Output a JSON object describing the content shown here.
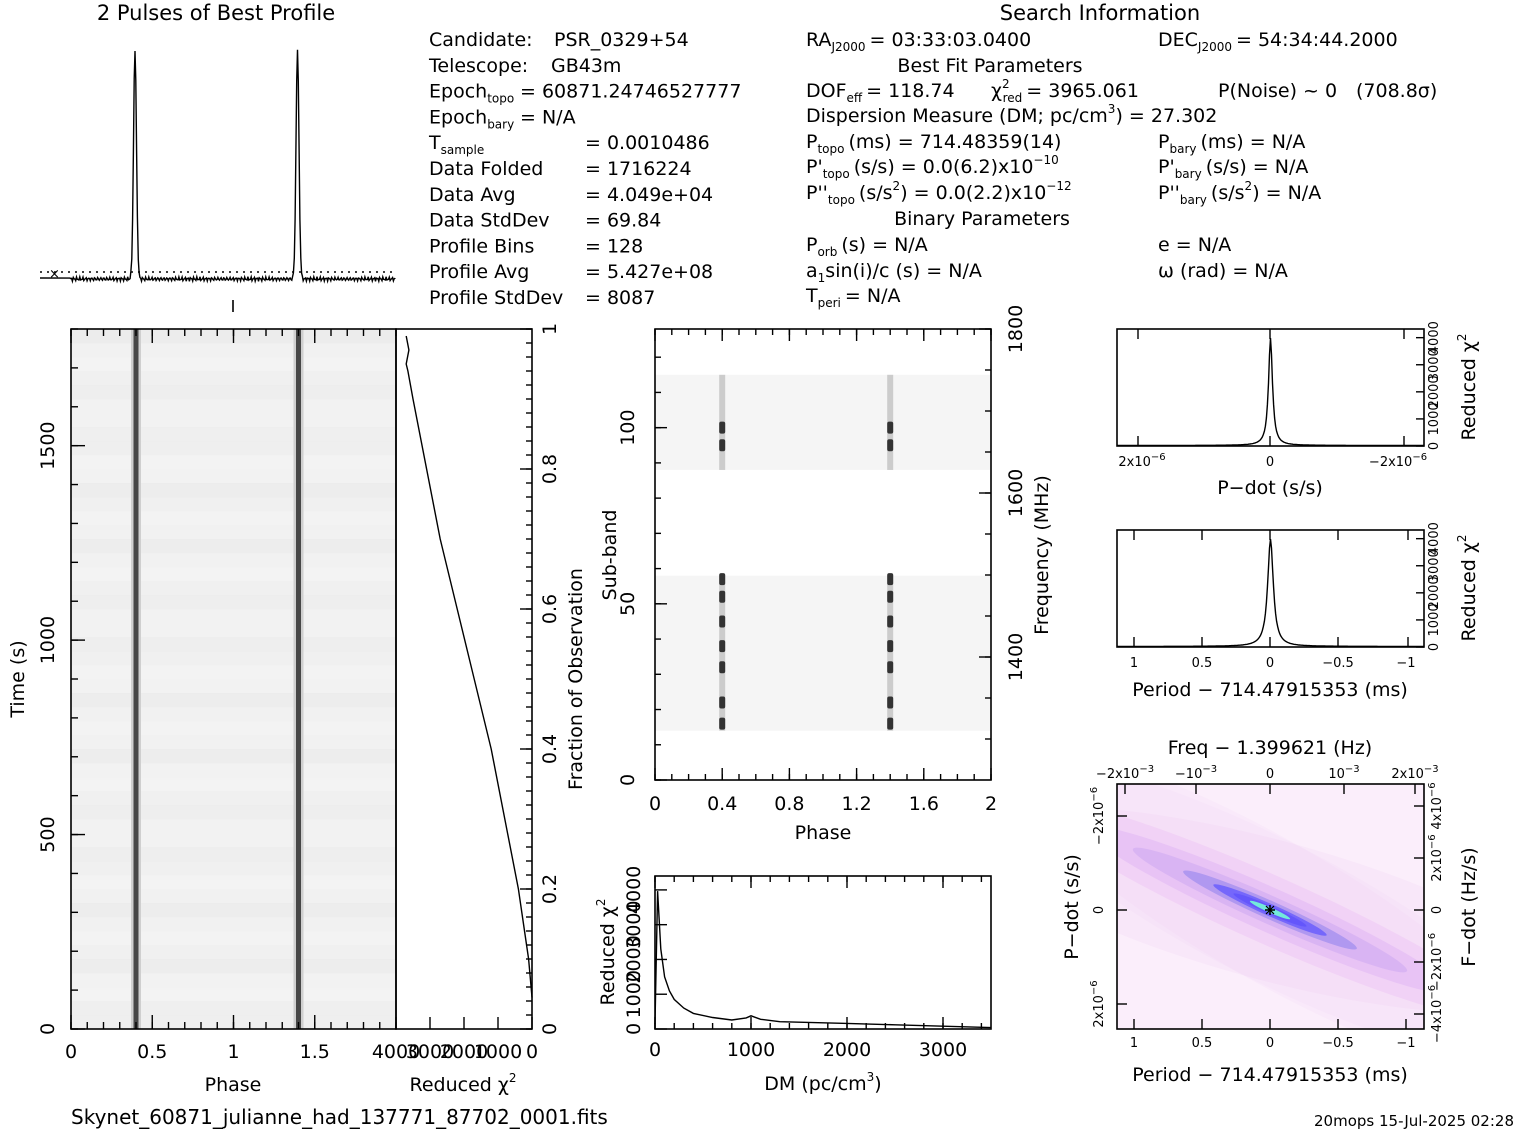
{
  "figure": {
    "profile_title": "2 Pulses of Best Profile",
    "search_title": "Search Information",
    "filename": "Skynet_60871_julianne_had_137771_87702_0001.fits",
    "footer": "20mops  15-Jul-2025 02:28"
  },
  "info": {
    "col1": [
      {
        "label": "Candidate:",
        "value": "PSR_0329+54"
      },
      {
        "label": "Telescope:",
        "value": "GB43m"
      },
      {
        "label": "Epoch",
        "sub": "topo",
        "value": "= 60871.24746527777"
      },
      {
        "label": "Epoch",
        "sub": "bary",
        "value": "= N/A"
      },
      {
        "label": "T",
        "sub": "sample",
        "value": "=   0.0010486"
      },
      {
        "label": "Data Folded",
        "value": "=   1716224"
      },
      {
        "label": "Data Avg",
        "value": "=   4.049e+04"
      },
      {
        "label": "Data StdDev",
        "value": "=   69.84"
      },
      {
        "label": "Profile Bins",
        "value": "=   128"
      },
      {
        "label": "Profile Avg",
        "value": "=   5.427e+08"
      },
      {
        "label": "Profile StdDev",
        "value": "=   8087"
      }
    ],
    "ra_label": "RA",
    "ra_sub": "J2000",
    "ra_value": "= 03:33:03.0400",
    "dec_label": "DEC",
    "dec_sub": "J2000",
    "dec_value": "= 54:34:44.2000",
    "best_fit_title": "Best Fit Parameters",
    "dof_label": "DOF",
    "dof_sub": "eff",
    "dof_value": "= 118.74",
    "chi_label": "χ",
    "chi_sup": "2",
    "chi_sub": "red",
    "chi_value": "= 3965.061",
    "pnoise": "P(Noise) ~ 0",
    "sigma": "(708.8σ)",
    "dm_line": "Dispersion Measure (DM; pc/cm",
    "dm_sup": "3",
    "dm_value": ") = 27.302",
    "ptopo_label": "P",
    "ptopo_sub": "topo",
    "ptopo_value": "(ms) =  714.48359(14)",
    "pdtopo_label": "P'",
    "pdtopo_sub": "topo",
    "pdtopo_value": "(s/s) = 0.0(6.2)x10",
    "pdtopo_exp": "−10",
    "pddtopo_label": "P''",
    "pddtopo_sub": "topo",
    "pddtopo_value": "(s/s",
    "pddtopo_sup2": "2",
    "pddtopo_value2": ") = 0.0(2.2)x10",
    "pddtopo_exp": "−12",
    "pbary_label": "P",
    "pbary_sub": "bary",
    "pbary_value": "(ms) = N/A",
    "pdbary_label": "P'",
    "pdbary_sub": "bary",
    "pdbary_value": "(s/s) = N/A",
    "pddbary_label": "P''",
    "pddbary_sub": "bary",
    "pddbary_value": "(s/s",
    "pddbary_sup2": "2",
    "pddbary_value2": ") = N/A",
    "binary_title": "Binary Parameters",
    "porb_label": "P",
    "porb_sub": "orb",
    "porb_value": "(s) = N/A",
    "asini_label": "a",
    "asini_sub": "1",
    "asini_value": "sin(i)/c (s) = N/A",
    "tperi_label": "T",
    "tperi_sub": "peri",
    "tperi_value": "= N/A",
    "e_value": "e = N/A",
    "omega_value": "ω (rad) = N/A"
  },
  "chart_data": [
    {
      "id": "profile",
      "type": "line",
      "title": "2 Pulses of Best Profile",
      "x": "phase 0–2 (two rotations)",
      "peaks_at_phase": [
        0.4,
        1.4
      ],
      "baseline_dotted": true
    },
    {
      "id": "time_phase",
      "type": "heatmap",
      "xlabel": "Phase",
      "ylabel": "Time (s)",
      "xticks": [
        "0",
        "0.5",
        "1",
        "1.5"
      ],
      "yticks": [
        "0",
        "500",
        "1000",
        "1500"
      ],
      "xlim": [
        0,
        2
      ],
      "ylim": [
        0,
        1800
      ],
      "pulse_phases": [
        0.4,
        1.4
      ]
    },
    {
      "id": "chi_vs_time",
      "type": "line",
      "xlabel": "Reduced χ",
      "xlabel_sup": "2",
      "ylabel": "Fraction of Observation",
      "xticks": [
        "4000",
        "3000",
        "2000",
        "1000",
        "0"
      ],
      "yticks": [
        "0",
        "0.2",
        "0.4",
        "0.6",
        "0.8",
        "1"
      ],
      "points": [
        [
          0,
          0.045
        ],
        [
          100,
          0.1
        ],
        [
          400,
          0.2
        ],
        [
          800,
          0.3
        ],
        [
          1200,
          0.4
        ],
        [
          1700,
          0.5
        ],
        [
          2200,
          0.6
        ],
        [
          2700,
          0.7
        ],
        [
          3100,
          0.8
        ],
        [
          3500,
          0.9
        ],
        [
          3650,
          0.94
        ],
        [
          3700,
          0.95
        ],
        [
          3620,
          0.97
        ],
        [
          3700,
          0.99
        ]
      ]
    },
    {
      "id": "subband_phase",
      "type": "heatmap",
      "xlabel": "Phase",
      "ylabel": "Sub-band",
      "y2label": "Frequency (MHz)",
      "xticks": [
        "0",
        "0.4",
        "0.8",
        "1.2",
        "1.6",
        "2"
      ],
      "yticks": [
        "0",
        "50",
        "100"
      ],
      "y2ticks": [
        "1400",
        "1600",
        "1800"
      ],
      "pulse_phases": [
        0.4,
        1.4
      ],
      "active_subbands": [
        [
          14,
          58
        ],
        [
          88,
          115
        ]
      ],
      "bright_subbands": [
        16,
        22,
        32,
        38,
        45,
        52,
        57,
        95,
        100
      ]
    },
    {
      "id": "dm_chi",
      "type": "line",
      "xlabel": "DM (pc/cm",
      "xlabel_sup": "3",
      "xlabel_tail": ")",
      "ylabel": "Reduced χ",
      "ylabel_sup": "2",
      "xticks": [
        "0",
        "1000",
        "2000",
        "3000"
      ],
      "yticks": [
        "0",
        "1000",
        "2000",
        "3000",
        "4000"
      ],
      "xlim": [
        0,
        3500
      ],
      "ylim": [
        0,
        4000
      ],
      "points": [
        [
          0,
          150
        ],
        [
          27,
          3965
        ],
        [
          60,
          2300
        ],
        [
          100,
          1500
        ],
        [
          150,
          1100
        ],
        [
          200,
          850
        ],
        [
          300,
          600
        ],
        [
          400,
          450
        ],
        [
          600,
          330
        ],
        [
          800,
          260
        ],
        [
          950,
          320
        ],
        [
          1000,
          380
        ],
        [
          1100,
          280
        ],
        [
          1300,
          210
        ],
        [
          1600,
          190
        ],
        [
          2000,
          160
        ],
        [
          2500,
          120
        ],
        [
          3000,
          80
        ],
        [
          3500,
          40
        ]
      ]
    },
    {
      "id": "pdot_chi",
      "type": "line",
      "xlabel": "P−dot (s/s)",
      "ylabel": "Reduced χ",
      "ylabel_sup": "2",
      "xticks": [
        "2x10",
        "0",
        "−2x10"
      ],
      "xtick_exp": "−6",
      "yticks": [
        "0",
        "1000",
        "2000",
        "3000",
        "4000"
      ],
      "peak_value": 3965
    },
    {
      "id": "period_chi",
      "type": "line",
      "xlabel": "Period − 714.47915353 (ms)",
      "ylabel": "Reduced χ",
      "ylabel_sup": "2",
      "xticks": [
        "1",
        "0.5",
        "0",
        "−0.5",
        "−1"
      ],
      "yticks": [
        "0",
        "1000",
        "2000",
        "3000",
        "4000"
      ],
      "peak_value": 3965
    },
    {
      "id": "period_pdot",
      "type": "heatmap",
      "title": "Freq − 1.399621 (Hz)",
      "xlabel": "Period − 714.47915353 (ms)",
      "ylabel": "P−dot (s/s)",
      "y2label": "F−dot (Hz/s)",
      "xticks": [
        "1",
        "0.5",
        "0",
        "−0.5",
        "−1"
      ],
      "x2ticks": [
        "−2x10",
        "−10",
        "0",
        "10",
        "2x10"
      ],
      "x2tick_exp": "−3",
      "yticks": [
        "2x10",
        "0",
        "−2x10"
      ],
      "ytick_exp": "−6",
      "y2ticks": [
        "−4x10",
        "−2x10",
        "0",
        "2x10",
        "4x10"
      ],
      "y2tick_exp": "−6"
    }
  ],
  "colors": {
    "trace": "#000000",
    "heat_dark": "#1a1aff",
    "heat_peak": "#33ffcc",
    "heat_bg": "#fbeefb"
  }
}
